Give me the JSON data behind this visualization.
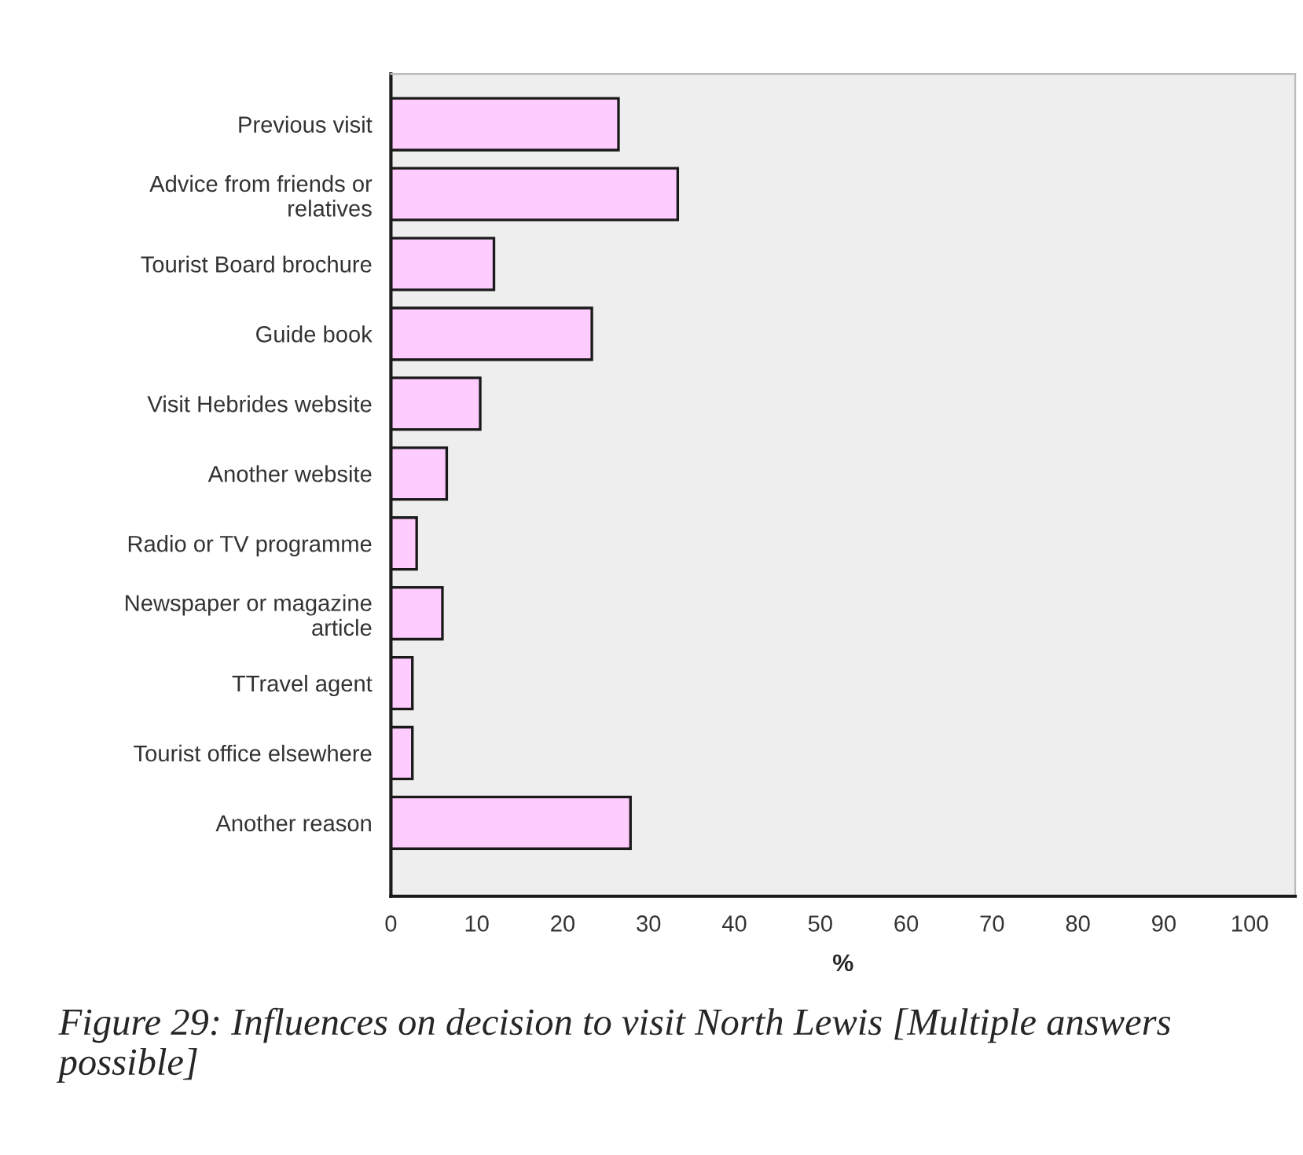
{
  "chart_data": {
    "type": "bar",
    "orientation": "horizontal",
    "title": "Figure 29: Influences on decision to visit North Lewis [Multiple answers possible]",
    "categories": [
      "Previous visit",
      "Advice from friends or\nrelatives",
      "Tourist Board brochure",
      "Guide book",
      "Visit Hebrides website",
      "Another website",
      "Radio or TV programme",
      "Newspaper or magazine\narticle",
      "TTravel agent",
      "Tourist office elsewhere",
      "Another reason"
    ],
    "values": [
      26.5,
      33.4,
      12.0,
      23.4,
      10.4,
      6.5,
      3.0,
      6.0,
      2.5,
      2.5,
      27.9
    ],
    "color": "#ffccff",
    "xlabel": "%",
    "xlim": [
      0,
      105.3
    ],
    "xticks": [
      0,
      10,
      20,
      30,
      40,
      50,
      60,
      70,
      80,
      90,
      100
    ],
    "grid": false,
    "legend": false
  }
}
